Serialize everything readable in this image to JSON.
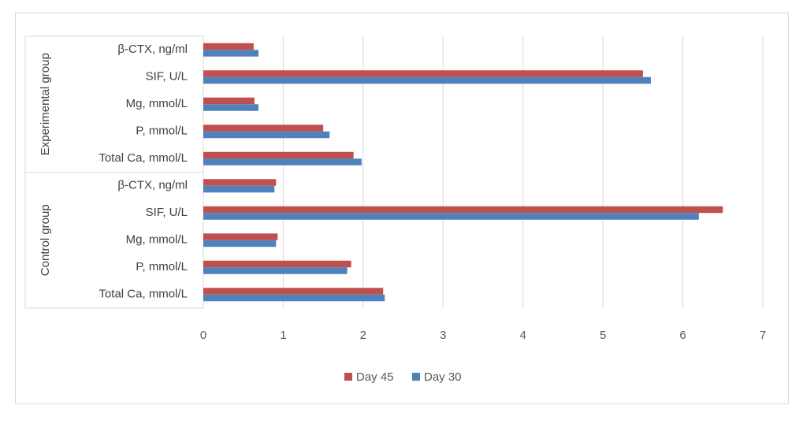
{
  "chart_data": {
    "type": "bar",
    "orientation": "horizontal",
    "groups": [
      {
        "name": "Experimental group",
        "categories": [
          "β-CTX, ng/ml",
          "SIF, U/L",
          "Mg,  mmol/L",
          "P, mmol/L",
          "Total Ca, mmol/L"
        ]
      },
      {
        "name": "Control group",
        "categories": [
          "β-CTX, ng/ml",
          "SIF, U/L",
          "Mg,  mmol/L",
          "P, mmol/L",
          "Total Ca, mmol/L"
        ]
      }
    ],
    "series": [
      {
        "name": "Day 45",
        "color": "#c0504d",
        "values": [
          0.63,
          5.5,
          0.64,
          1.5,
          1.88,
          0.91,
          6.5,
          0.93,
          1.85,
          2.25
        ]
      },
      {
        "name": "Day 30",
        "color": "#4f81bd",
        "values": [
          0.69,
          5.6,
          0.69,
          1.58,
          1.98,
          0.89,
          6.2,
          0.91,
          1.8,
          2.27
        ]
      }
    ],
    "xlim": [
      0,
      7
    ],
    "xticks": [
      "0",
      "1",
      "2",
      "3",
      "4",
      "5",
      "6",
      "7"
    ],
    "grid": true,
    "legend_position": "bottom"
  }
}
